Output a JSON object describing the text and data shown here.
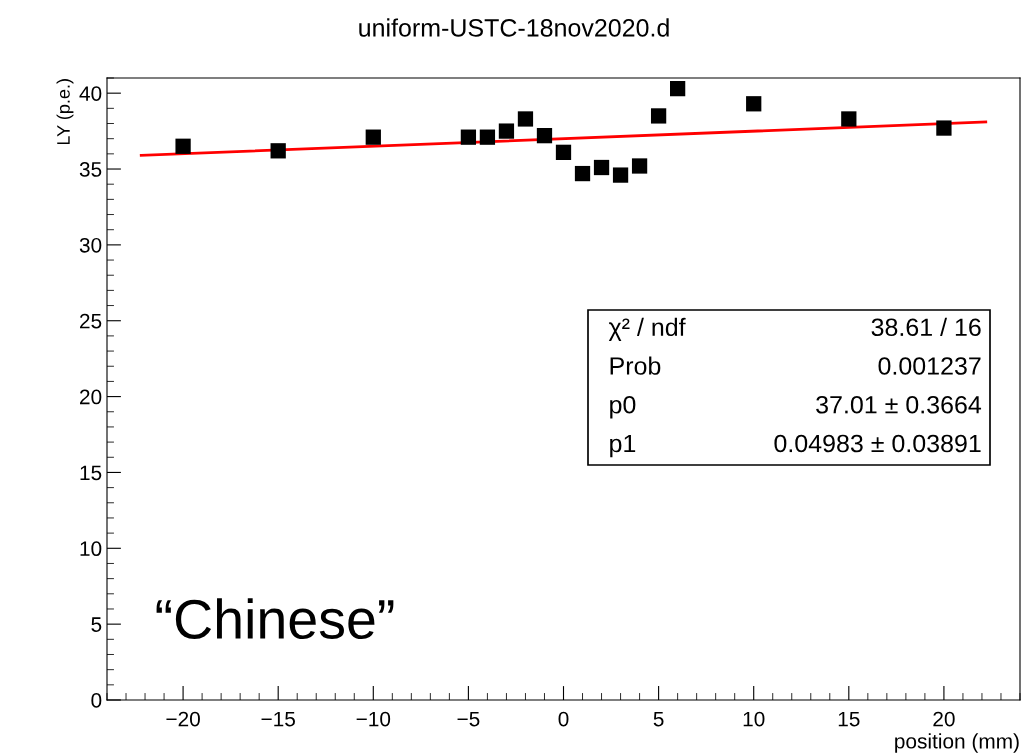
{
  "chart_data": {
    "type": "scatter",
    "title": "uniform-USTC-18nov2020.d",
    "xlabel": "position (mm)",
    "ylabel": "LY (p.e.)",
    "series": [
      {
        "color": "#000000",
        "marker": "square",
        "x": [
          -20,
          -15,
          -10,
          -5,
          -4,
          -3,
          -2,
          -1,
          0,
          1,
          2,
          3,
          4,
          5,
          6,
          10,
          15,
          20
        ],
        "values": [
          36.5,
          36.2,
          37.1,
          37.1,
          37.1,
          37.5,
          38.3,
          37.2,
          36.1,
          34.7,
          35.1,
          34.6,
          35.2,
          38.5,
          40.3,
          39.3,
          38.3,
          37.7
        ]
      },
      {
        "type": "line",
        "color": "#ff0000",
        "marker": "none",
        "line_style": "solid",
        "x": [
          -22.2,
          22.2
        ],
        "values": [
          35.9,
          38.1
        ]
      }
    ],
    "xlim": [
      -24,
      24
    ],
    "xticks": [
      -20,
      -15,
      -10,
      -5,
      0,
      5,
      10,
      15,
      20
    ],
    "ylim": [
      0,
      41
    ],
    "yticks": [
      0,
      5,
      10,
      15,
      20,
      25,
      30,
      35,
      40
    ],
    "grid": false,
    "legend": false,
    "annotations": [
      "χ² / ndf",
      "38.61 / 16",
      "Prob",
      "0.001237",
      "p0",
      "37.01 ± 0.3664",
      "p1",
      "0.04983 ± 0.03891",
      "“Chinese”"
    ]
  }
}
